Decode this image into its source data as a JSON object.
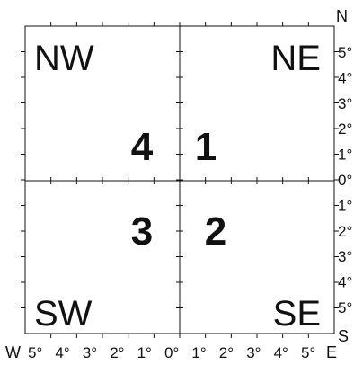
{
  "quadrants": [
    {
      "id": "nw",
      "label": "NW",
      "number": "4"
    },
    {
      "id": "ne",
      "label": "NE",
      "number": "1"
    },
    {
      "id": "sw",
      "label": "SW",
      "number": "3"
    },
    {
      "id": "se",
      "label": "SE",
      "number": "2"
    }
  ],
  "x_axis": {
    "left_label": "W",
    "right_label": "E",
    "ticks": [
      "5°",
      "4°",
      "3°",
      "2°",
      "1°",
      "0°",
      "1°",
      "2°",
      "3°",
      "4°",
      "5°"
    ]
  },
  "y_axis": {
    "top_label": "N",
    "bottom_label": "S",
    "ticks": [
      "5°",
      "4°",
      "3°",
      "2°",
      "1°",
      "0°",
      "1°",
      "2°",
      "3°",
      "4°",
      "5°"
    ]
  },
  "colors": {
    "line": "#111111",
    "background": "#ffffff"
  }
}
